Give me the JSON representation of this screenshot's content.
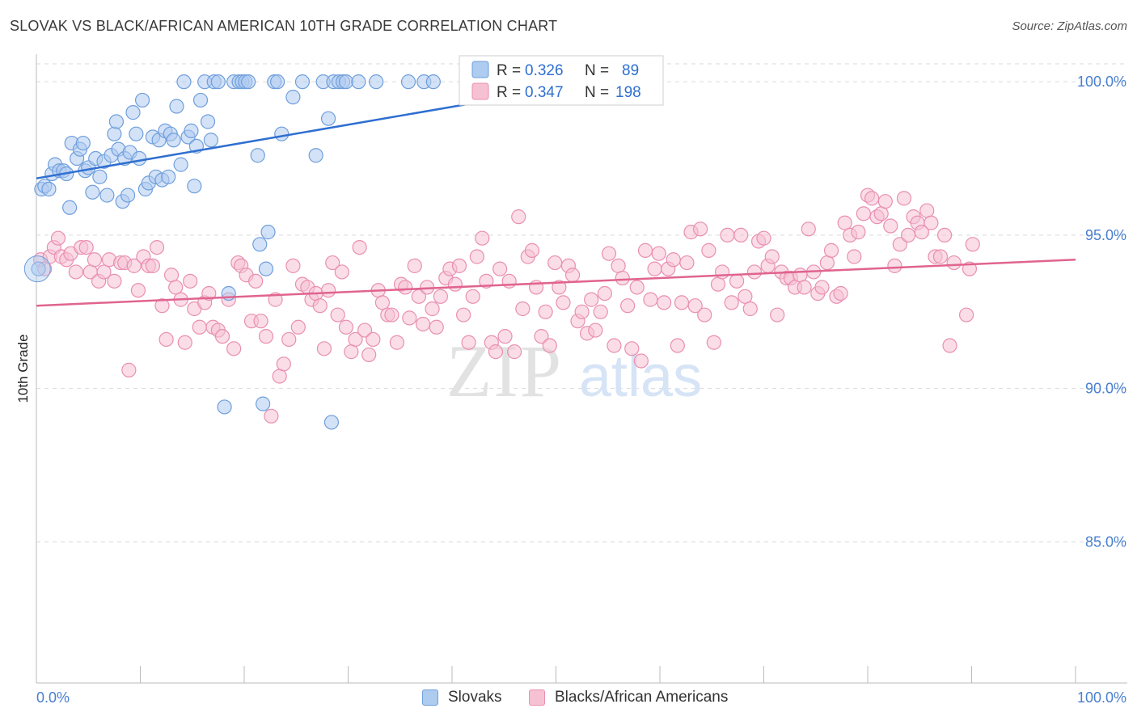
{
  "header": {
    "title": "SLOVAK VS BLACK/AFRICAN AMERICAN 10TH GRADE CORRELATION CHART",
    "source": "Source: ZipAtlas.com"
  },
  "watermark": {
    "zip": "ZIP",
    "atlas": "atlas"
  },
  "legend": {
    "r_label": "R =",
    "n_label": "N =",
    "rows": [
      {
        "series": "Slovaks",
        "r": "0.326",
        "n": "89"
      },
      {
        "series": "Blacks/African Americans",
        "r": "0.347",
        "n": "198"
      }
    ]
  },
  "colors": {
    "slovaks_fill": "#aecbf0",
    "slovaks_stroke": "#6f9fdc",
    "slovaks_line": "#2f6fd0",
    "blacks_fill": "#f6c1d3",
    "blacks_stroke": "#e98fb0",
    "blacks_line": "#e0648f",
    "axis_value": "#4a7fd0",
    "grid": "#d9d9d9"
  },
  "chart_data": {
    "type": "scatter",
    "title": "SLOVAK VS BLACK/AFRICAN AMERICAN 10TH GRADE CORRELATION CHART",
    "xlabel": "",
    "ylabel": "10th Grade",
    "xlim": [
      0,
      100
    ],
    "ylim": [
      80.4,
      100.9
    ],
    "x_tick_labels": [
      "0.0%",
      "100.0%"
    ],
    "y_ticks": [
      {
        "value": 100,
        "label": "100.0%"
      },
      {
        "value": 95,
        "label": "95.0%"
      },
      {
        "value": 90,
        "label": "90.0%"
      },
      {
        "value": 85,
        "label": "85.0%"
      }
    ],
    "grid": true,
    "legend_placement": "top-center",
    "series": [
      {
        "name": "Slovaks",
        "r": 0.326,
        "n": 89,
        "trend": {
          "x": [
            0,
            54
          ],
          "y": [
            96.85,
            100.0
          ]
        },
        "points": [
          [
            0.2,
            93.9
          ],
          [
            0.5,
            96.5
          ],
          [
            0.8,
            96.6
          ],
          [
            1.2,
            96.5
          ],
          [
            1.5,
            97.0
          ],
          [
            1.8,
            97.3
          ],
          [
            2.2,
            97.1
          ],
          [
            2.6,
            97.1
          ],
          [
            2.9,
            97.0
          ],
          [
            3.2,
            95.9
          ],
          [
            3.4,
            98.0
          ],
          [
            3.9,
            97.5
          ],
          [
            4.2,
            97.8
          ],
          [
            4.5,
            98.0
          ],
          [
            4.7,
            97.1
          ],
          [
            5.0,
            97.2
          ],
          [
            5.4,
            96.4
          ],
          [
            5.7,
            97.5
          ],
          [
            6.1,
            96.9
          ],
          [
            6.5,
            97.4
          ],
          [
            6.8,
            96.3
          ],
          [
            7.2,
            97.6
          ],
          [
            7.5,
            98.3
          ],
          [
            7.7,
            98.7
          ],
          [
            7.9,
            97.8
          ],
          [
            8.3,
            96.1
          ],
          [
            8.5,
            97.5
          ],
          [
            8.8,
            96.3
          ],
          [
            9.0,
            97.7
          ],
          [
            9.3,
            99.0
          ],
          [
            9.6,
            98.3
          ],
          [
            9.9,
            97.5
          ],
          [
            10.2,
            99.4
          ],
          [
            10.5,
            96.5
          ],
          [
            10.8,
            96.7
          ],
          [
            11.2,
            98.2
          ],
          [
            11.5,
            96.9
          ],
          [
            11.8,
            98.1
          ],
          [
            12.1,
            96.8
          ],
          [
            12.4,
            98.4
          ],
          [
            12.7,
            96.9
          ],
          [
            12.9,
            98.3
          ],
          [
            13.2,
            98.1
          ],
          [
            13.5,
            99.2
          ],
          [
            13.9,
            97.3
          ],
          [
            14.2,
            100.0
          ],
          [
            14.6,
            98.2
          ],
          [
            14.9,
            98.4
          ],
          [
            15.2,
            96.6
          ],
          [
            15.4,
            97.9
          ],
          [
            15.8,
            99.4
          ],
          [
            16.2,
            100.0
          ],
          [
            16.5,
            98.7
          ],
          [
            16.8,
            98.1
          ],
          [
            17.1,
            100.0
          ],
          [
            17.5,
            100.0
          ],
          [
            18.1,
            89.4
          ],
          [
            18.5,
            93.1
          ],
          [
            19.0,
            100.0
          ],
          [
            19.5,
            100.0
          ],
          [
            19.8,
            100.0
          ],
          [
            20.1,
            100.0
          ],
          [
            20.4,
            100.0
          ],
          [
            21.3,
            97.6
          ],
          [
            21.5,
            94.7
          ],
          [
            21.8,
            89.5
          ],
          [
            22.1,
            93.9
          ],
          [
            22.3,
            95.1
          ],
          [
            22.9,
            100.0
          ],
          [
            23.2,
            100.0
          ],
          [
            23.6,
            98.3
          ],
          [
            24.7,
            99.5
          ],
          [
            25.6,
            100.0
          ],
          [
            26.9,
            97.6
          ],
          [
            27.6,
            100.0
          ],
          [
            28.1,
            98.8
          ],
          [
            28.4,
            88.9
          ],
          [
            28.6,
            100.0
          ],
          [
            29.1,
            100.0
          ],
          [
            29.5,
            100.0
          ],
          [
            29.8,
            100.0
          ],
          [
            31.0,
            100.0
          ],
          [
            32.7,
            100.0
          ],
          [
            35.8,
            100.0
          ],
          [
            37.3,
            100.0
          ],
          [
            38.2,
            100.0
          ],
          [
            46.5,
            100.0
          ],
          [
            48.6,
            100.0
          ],
          [
            52.2,
            100.0
          ]
        ]
      },
      {
        "name": "Blacks/African Americans",
        "r": 0.347,
        "n": 198,
        "trend": {
          "x": [
            0,
            100
          ],
          "y": [
            92.7,
            94.2
          ]
        },
        "points": [
          [
            0.4,
            94.2
          ],
          [
            0.8,
            93.9
          ],
          [
            1.3,
            94.3
          ],
          [
            1.7,
            94.6
          ],
          [
            2.1,
            94.9
          ],
          [
            2.4,
            94.3
          ],
          [
            2.9,
            94.2
          ],
          [
            3.3,
            94.4
          ],
          [
            3.8,
            93.8
          ],
          [
            4.3,
            94.6
          ],
          [
            4.8,
            94.6
          ],
          [
            5.2,
            93.8
          ],
          [
            5.6,
            94.2
          ],
          [
            6.0,
            93.5
          ],
          [
            6.5,
            93.8
          ],
          [
            7.0,
            94.2
          ],
          [
            7.5,
            93.5
          ],
          [
            8.1,
            94.1
          ],
          [
            8.5,
            94.1
          ],
          [
            8.9,
            90.6
          ],
          [
            9.4,
            94.0
          ],
          [
            9.8,
            93.2
          ],
          [
            10.3,
            94.3
          ],
          [
            10.8,
            94.0
          ],
          [
            11.2,
            94.0
          ],
          [
            11.6,
            94.6
          ],
          [
            12.1,
            92.7
          ],
          [
            12.5,
            91.6
          ],
          [
            13.0,
            93.7
          ],
          [
            13.4,
            93.3
          ],
          [
            13.9,
            92.9
          ],
          [
            14.3,
            91.5
          ],
          [
            14.8,
            93.5
          ],
          [
            15.2,
            92.6
          ],
          [
            15.7,
            92.0
          ],
          [
            16.2,
            92.8
          ],
          [
            16.6,
            93.1
          ],
          [
            17.0,
            92.0
          ],
          [
            17.5,
            91.9
          ],
          [
            17.9,
            91.7
          ],
          [
            18.5,
            92.9
          ],
          [
            19.0,
            91.3
          ],
          [
            19.4,
            94.1
          ],
          [
            19.7,
            94.0
          ],
          [
            20.2,
            93.7
          ],
          [
            20.7,
            92.2
          ],
          [
            21.1,
            93.5
          ],
          [
            21.6,
            92.2
          ],
          [
            22.1,
            91.7
          ],
          [
            22.6,
            89.1
          ],
          [
            23.0,
            92.9
          ],
          [
            23.4,
            90.4
          ],
          [
            23.8,
            90.8
          ],
          [
            24.3,
            91.6
          ],
          [
            24.7,
            94.0
          ],
          [
            25.2,
            92.0
          ],
          [
            25.6,
            93.4
          ],
          [
            26.1,
            93.3
          ],
          [
            26.5,
            92.9
          ],
          [
            26.9,
            93.1
          ],
          [
            27.3,
            92.7
          ],
          [
            27.7,
            91.3
          ],
          [
            28.1,
            93.2
          ],
          [
            28.5,
            94.1
          ],
          [
            29.0,
            92.4
          ],
          [
            29.4,
            93.8
          ],
          [
            29.8,
            92.0
          ],
          [
            30.3,
            91.2
          ],
          [
            30.7,
            91.6
          ],
          [
            31.1,
            94.6
          ],
          [
            31.6,
            91.9
          ],
          [
            32.0,
            91.1
          ],
          [
            32.4,
            91.6
          ],
          [
            32.9,
            93.2
          ],
          [
            33.3,
            92.8
          ],
          [
            33.8,
            92.4
          ],
          [
            34.2,
            92.4
          ],
          [
            34.7,
            91.5
          ],
          [
            35.1,
            93.4
          ],
          [
            35.5,
            93.3
          ],
          [
            35.9,
            92.3
          ],
          [
            36.4,
            94.0
          ],
          [
            36.8,
            93.0
          ],
          [
            37.2,
            92.1
          ],
          [
            37.6,
            93.3
          ],
          [
            38.1,
            92.6
          ],
          [
            38.5,
            92.0
          ],
          [
            38.9,
            93.0
          ],
          [
            39.4,
            93.6
          ],
          [
            39.8,
            93.9
          ],
          [
            40.3,
            93.4
          ],
          [
            40.7,
            94.0
          ],
          [
            41.1,
            92.4
          ],
          [
            41.6,
            91.5
          ],
          [
            42.0,
            93.0
          ],
          [
            42.4,
            94.3
          ],
          [
            42.9,
            94.9
          ],
          [
            43.3,
            93.5
          ],
          [
            43.8,
            91.5
          ],
          [
            44.2,
            91.2
          ],
          [
            44.6,
            93.9
          ],
          [
            45.1,
            91.7
          ],
          [
            45.5,
            93.5
          ],
          [
            46.0,
            91.2
          ],
          [
            46.4,
            95.6
          ],
          [
            46.8,
            92.6
          ],
          [
            47.3,
            94.3
          ],
          [
            47.7,
            94.5
          ],
          [
            48.1,
            93.3
          ],
          [
            48.6,
            91.7
          ],
          [
            49.0,
            92.5
          ],
          [
            49.4,
            91.4
          ],
          [
            49.9,
            94.1
          ],
          [
            50.3,
            93.3
          ],
          [
            50.7,
            92.8
          ],
          [
            51.2,
            94.0
          ],
          [
            51.6,
            93.7
          ],
          [
            52.1,
            92.2
          ],
          [
            52.5,
            92.5
          ],
          [
            53.0,
            91.8
          ],
          [
            53.4,
            92.9
          ],
          [
            53.8,
            91.9
          ],
          [
            54.3,
            92.5
          ],
          [
            54.7,
            93.1
          ],
          [
            55.1,
            94.4
          ],
          [
            55.6,
            91.4
          ],
          [
            56.0,
            94.0
          ],
          [
            56.4,
            93.6
          ],
          [
            56.9,
            92.7
          ],
          [
            57.3,
            91.3
          ],
          [
            57.8,
            93.3
          ],
          [
            58.2,
            90.9
          ],
          [
            58.6,
            94.5
          ],
          [
            59.1,
            92.9
          ],
          [
            59.5,
            93.9
          ],
          [
            59.9,
            94.4
          ],
          [
            60.4,
            92.8
          ],
          [
            60.8,
            93.9
          ],
          [
            61.3,
            94.2
          ],
          [
            61.7,
            91.4
          ],
          [
            62.1,
            92.8
          ],
          [
            62.6,
            94.1
          ],
          [
            63.0,
            95.1
          ],
          [
            63.4,
            92.7
          ],
          [
            63.9,
            95.2
          ],
          [
            64.3,
            92.4
          ],
          [
            64.7,
            94.5
          ],
          [
            65.2,
            91.5
          ],
          [
            65.6,
            93.4
          ],
          [
            66.0,
            93.8
          ],
          [
            66.5,
            95.0
          ],
          [
            66.9,
            92.8
          ],
          [
            67.4,
            93.5
          ],
          [
            67.8,
            95.0
          ],
          [
            68.2,
            93.0
          ],
          [
            68.7,
            92.6
          ],
          [
            69.1,
            93.8
          ],
          [
            69.5,
            94.8
          ],
          [
            70.0,
            94.9
          ],
          [
            70.4,
            94.0
          ],
          [
            70.8,
            94.3
          ],
          [
            71.3,
            92.4
          ],
          [
            71.7,
            93.8
          ],
          [
            72.2,
            93.6
          ],
          [
            72.6,
            93.6
          ],
          [
            73.0,
            93.3
          ],
          [
            73.5,
            93.7
          ],
          [
            73.9,
            93.3
          ],
          [
            74.3,
            95.2
          ],
          [
            74.8,
            93.8
          ],
          [
            75.2,
            93.1
          ],
          [
            75.6,
            93.3
          ],
          [
            76.1,
            94.1
          ],
          [
            76.5,
            94.5
          ],
          [
            77.0,
            93.0
          ],
          [
            77.4,
            93.1
          ],
          [
            77.8,
            95.4
          ],
          [
            78.3,
            95.0
          ],
          [
            78.7,
            94.3
          ],
          [
            79.1,
            95.1
          ],
          [
            79.6,
            95.7
          ],
          [
            80.0,
            96.3
          ],
          [
            80.4,
            96.2
          ],
          [
            80.9,
            95.6
          ],
          [
            81.3,
            95.7
          ],
          [
            81.7,
            96.1
          ],
          [
            82.2,
            95.3
          ],
          [
            82.6,
            94.0
          ],
          [
            83.1,
            94.7
          ],
          [
            83.5,
            96.2
          ],
          [
            83.9,
            95.0
          ],
          [
            84.4,
            95.6
          ],
          [
            84.8,
            95.4
          ],
          [
            85.2,
            95.1
          ],
          [
            85.7,
            95.8
          ],
          [
            86.1,
            95.4
          ],
          [
            86.5,
            94.3
          ],
          [
            87.0,
            94.3
          ],
          [
            87.4,
            95.0
          ],
          [
            87.9,
            91.4
          ],
          [
            88.3,
            94.1
          ],
          [
            89.5,
            92.4
          ],
          [
            90.1,
            94.7
          ],
          [
            89.8,
            93.9
          ]
        ]
      }
    ]
  }
}
